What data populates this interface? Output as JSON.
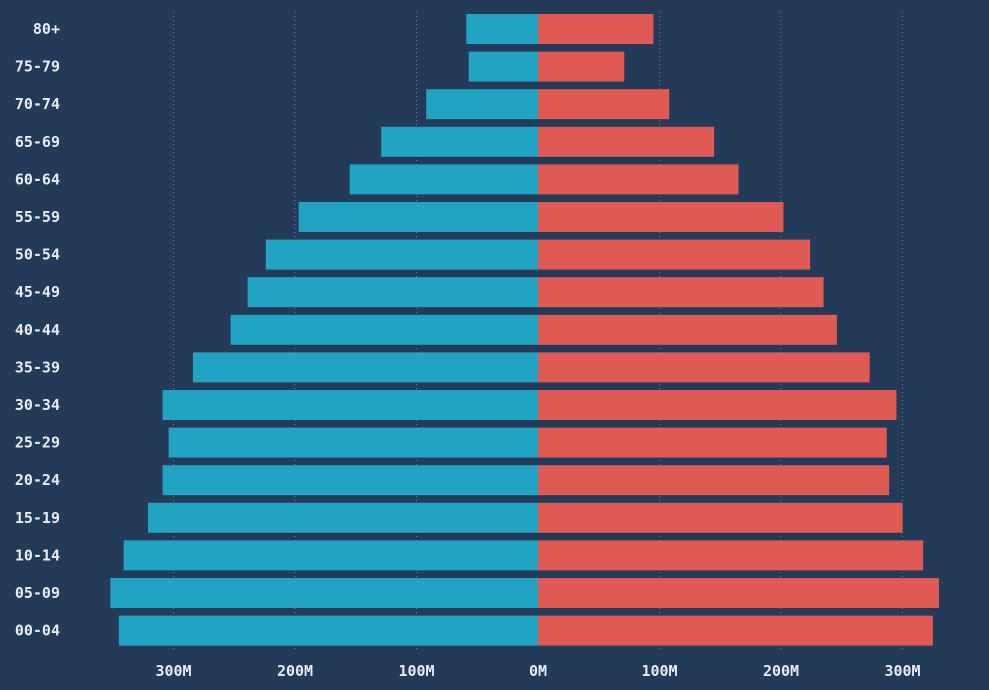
{
  "chart_data": {
    "type": "bar",
    "orientation": "horizontal",
    "layout": "population-pyramid",
    "categories": [
      "80+",
      "75-79",
      "70-74",
      "65-69",
      "60-64",
      "55-59",
      "50-54",
      "45-49",
      "40-44",
      "35-39",
      "30-34",
      "25-29",
      "20-24",
      "15-19",
      "10-14",
      "05-09",
      "00-04"
    ],
    "series": [
      {
        "side": "left",
        "color": "#21a3c4",
        "values": [
          59,
          57,
          92,
          129,
          155,
          197,
          224,
          239,
          253,
          284,
          309,
          304,
          309,
          321,
          341,
          352,
          345
        ]
      },
      {
        "side": "right",
        "color": "#e05a55",
        "values": [
          95,
          71,
          108,
          145,
          165,
          202,
          224,
          235,
          246,
          273,
          295,
          287,
          289,
          300,
          317,
          330,
          325
        ]
      }
    ],
    "xlim": [
      -350,
      330
    ],
    "x_ticks": [
      {
        "value": -300,
        "label": "300M"
      },
      {
        "value": -200,
        "label": "200M"
      },
      {
        "value": -100,
        "label": "100M"
      },
      {
        "value": 0,
        "label": "0M"
      },
      {
        "value": 100,
        "label": "100M"
      },
      {
        "value": 200,
        "label": "200M"
      },
      {
        "value": 300,
        "label": "300M"
      }
    ],
    "grid": true,
    "background": "#243a59",
    "title": "",
    "xlabel": "",
    "ylabel": ""
  }
}
